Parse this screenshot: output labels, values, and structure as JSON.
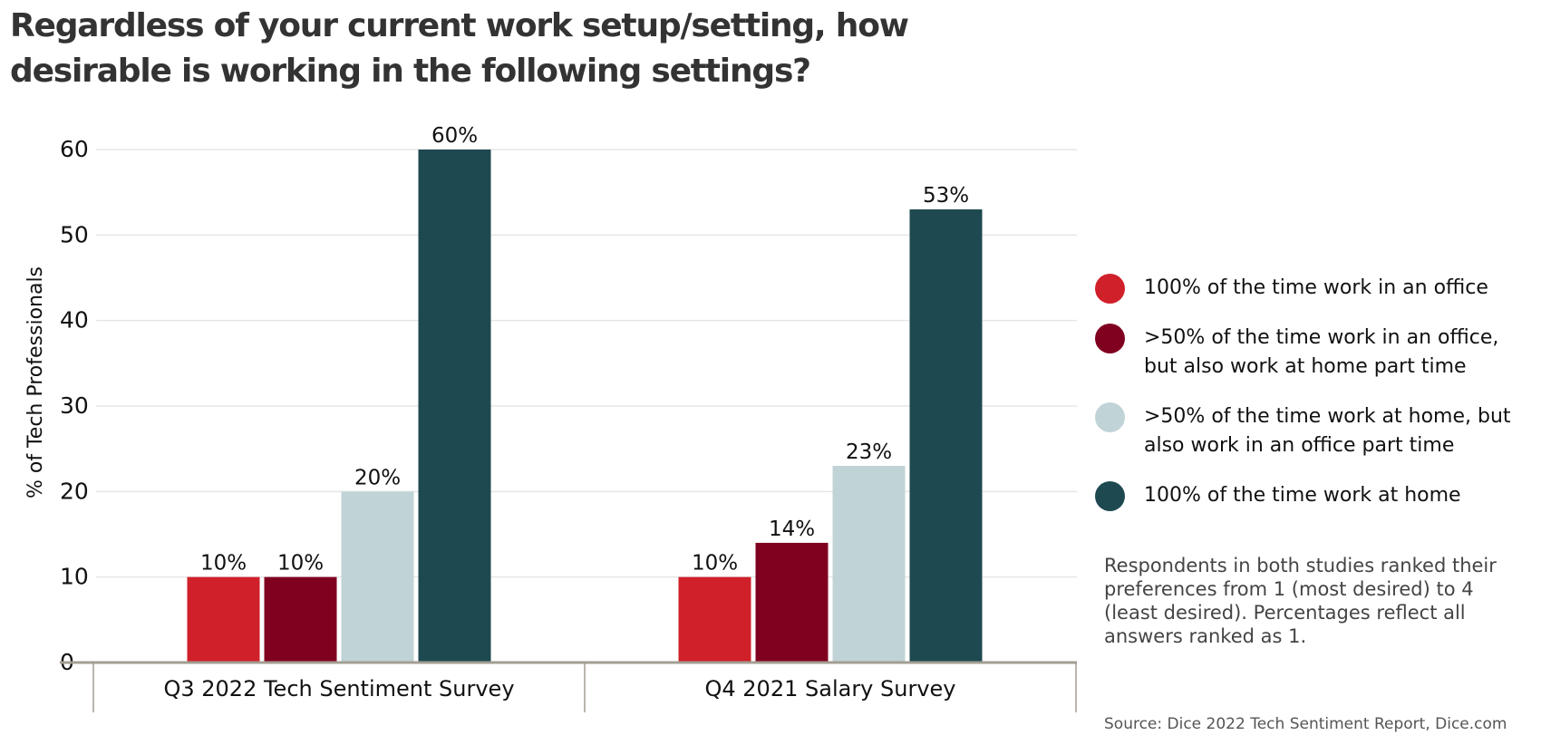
{
  "chart_data": {
    "type": "bar",
    "title": "Regardless of your current work setup/setting, how desirable is working in the following settings?",
    "ylabel": "% of Tech Professionals",
    "xlabel": "",
    "ylim": [
      0,
      60
    ],
    "yticks": [
      0,
      10,
      20,
      30,
      40,
      50,
      60
    ],
    "categories": [
      "Q3 2022 Tech Sentiment Survey",
      "Q4 2021 Salary Survey"
    ],
    "series": [
      {
        "name": "100% of the time work in an office",
        "color": "#d0202a",
        "values": [
          10,
          10
        ],
        "labels": [
          "10%",
          "10%"
        ]
      },
      {
        "name": ">50% of the time work in an office, but also work at home part time",
        "color": "#800020",
        "values": [
          10,
          14
        ],
        "labels": [
          "10%",
          "14%"
        ]
      },
      {
        "name": ">50% of the time work at home, but also work in an office part time",
        "color": "#c0d3d6",
        "values": [
          20,
          23
        ],
        "labels": [
          "20%",
          "23%"
        ]
      },
      {
        "name": "100% of the time work at home",
        "color": "#1e4950",
        "values": [
          60,
          53
        ],
        "labels": [
          "60%",
          "53%"
        ]
      }
    ],
    "grid": true,
    "legend_position": "right",
    "note": "Respondents in both studies ranked their preferences from 1 (most desired) to 4 (least desired). Percentages reflect all answers ranked as 1.",
    "source": "Source: Dice 2022 Tech Sentiment Report, Dice.com"
  }
}
